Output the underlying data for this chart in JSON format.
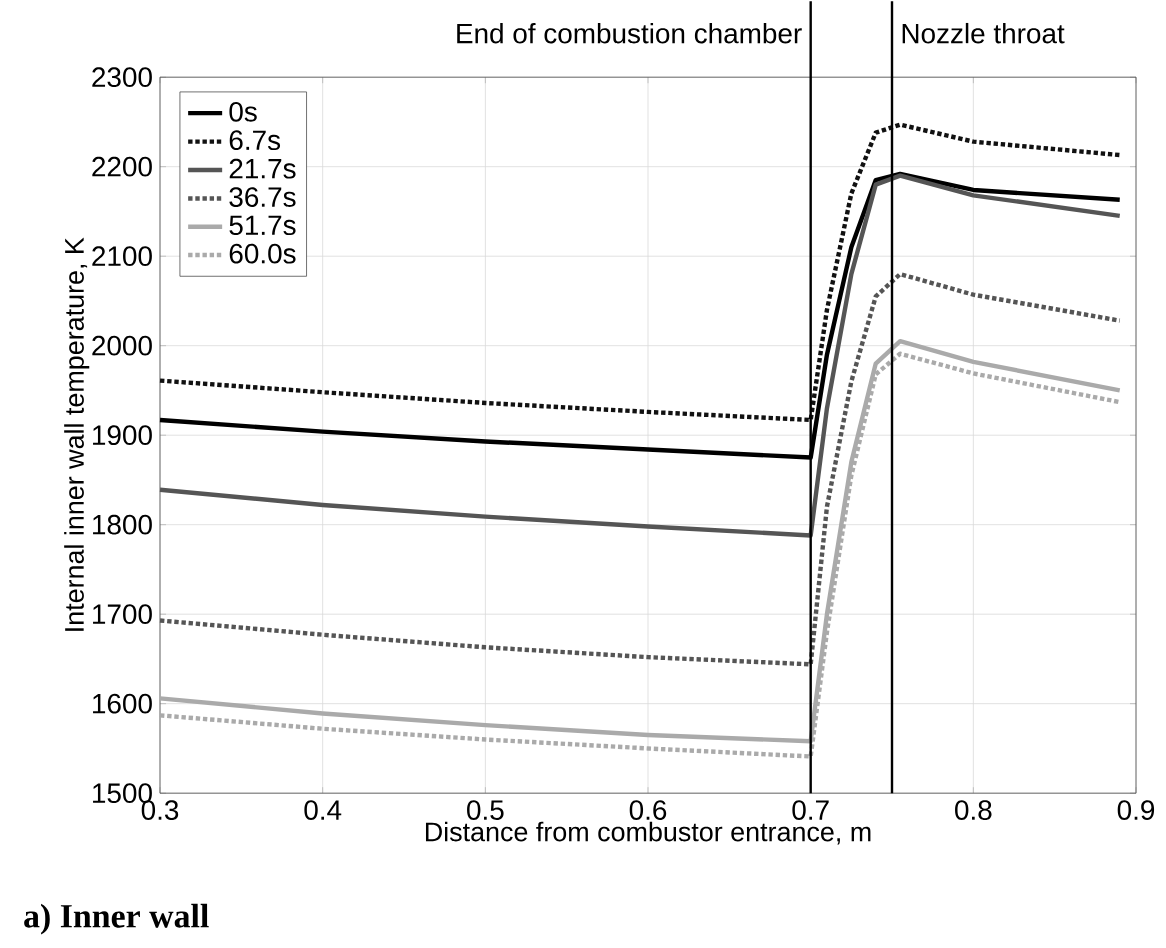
{
  "chart_data": {
    "type": "line",
    "xlabel": "Distance from combustor entrance, m",
    "ylabel": "Internal inner wall temperature, K",
    "x": [
      0.3,
      0.4,
      0.5,
      0.6,
      0.7,
      0.71,
      0.725,
      0.74,
      0.755,
      0.8,
      0.89
    ],
    "series": [
      {
        "name": "0s",
        "color": "#000000",
        "line_style": "solid",
        "values": [
          1917,
          1904,
          1893,
          1884,
          1875,
          1990,
          2110,
          2185,
          2192,
          2174,
          2163
        ]
      },
      {
        "name": "6.7s",
        "color": "#111111",
        "line_style": "dotted",
        "values": [
          1961,
          1948,
          1936,
          1926,
          1917,
          2040,
          2170,
          2238,
          2247,
          2228,
          2213
        ]
      },
      {
        "name": "21.7s",
        "color": "#555555",
        "line_style": "solid",
        "values": [
          1839,
          1822,
          1809,
          1798,
          1788,
          1930,
          2080,
          2180,
          2190,
          2168,
          2145
        ]
      },
      {
        "name": "36.7s",
        "color": "#555555",
        "line_style": "dotted",
        "values": [
          1693,
          1677,
          1663,
          1652,
          1644,
          1820,
          1960,
          2055,
          2080,
          2057,
          2028
        ]
      },
      {
        "name": "51.7s",
        "color": "#aaaaaa",
        "line_style": "solid",
        "values": [
          1606,
          1589,
          1576,
          1565,
          1558,
          1700,
          1870,
          1980,
          2005,
          1982,
          1950
        ]
      },
      {
        "name": "60.0s",
        "color": "#aaaaaa",
        "line_style": "dotted",
        "values": [
          1587,
          1572,
          1560,
          1550,
          1541,
          1680,
          1855,
          1968,
          1991,
          1969,
          1937
        ]
      }
    ],
    "xlim": [
      0.3,
      0.9
    ],
    "xticks": [
      0.3,
      0.4,
      0.5,
      0.6,
      0.7,
      0.8,
      0.9
    ],
    "ylim": [
      1500,
      2300
    ],
    "yticks": [
      1500,
      1600,
      1700,
      1800,
      1900,
      2000,
      2100,
      2200,
      2300
    ],
    "ref_lines": [
      {
        "axis": "x",
        "value": 0.7,
        "label": "End of combustion chamber",
        "color": "#000000"
      },
      {
        "axis": "x",
        "value": 0.75,
        "label": "Nozzle throat",
        "color": "#000000"
      }
    ],
    "annotations": [
      "a) Inner wall"
    ],
    "grid": true,
    "legend": "top left",
    "marker": "none"
  }
}
